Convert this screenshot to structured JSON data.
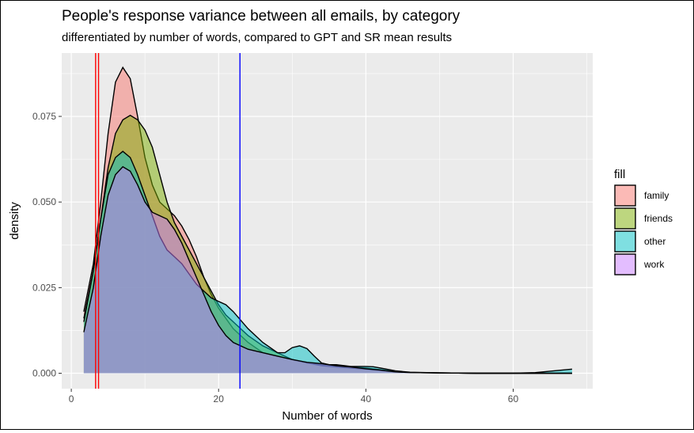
{
  "chart_data": {
    "type": "area",
    "title": "People's response variance between all emails, by category",
    "subtitle": "differentiated by number of words, compared to GPT and SR mean results",
    "xlabel": "Number of words",
    "ylabel": "density",
    "xlim": [
      -1.3,
      70.8
    ],
    "ylim": [
      -0.0045,
      0.0935
    ],
    "x_ticks": [
      0,
      20,
      40,
      60
    ],
    "x_tick_labels": [
      "0",
      "20",
      "40",
      "60"
    ],
    "y_ticks": [
      0.0,
      0.025,
      0.05,
      0.075
    ],
    "y_tick_labels": [
      "0.000",
      "0.025",
      "0.050",
      "0.075"
    ],
    "grid": true,
    "legend": {
      "title": "fill",
      "position": "right"
    },
    "series": [
      {
        "name": "family",
        "color": "#F8766D",
        "points": [
          [
            1.7,
            0.018
          ],
          [
            3,
            0.032
          ],
          [
            4,
            0.05
          ],
          [
            5,
            0.07
          ],
          [
            6,
            0.085
          ],
          [
            7,
            0.0893
          ],
          [
            8,
            0.086
          ],
          [
            9,
            0.075
          ],
          [
            10,
            0.063
          ],
          [
            11,
            0.055
          ],
          [
            12,
            0.05
          ],
          [
            13,
            0.048
          ],
          [
            14,
            0.046
          ],
          [
            15,
            0.043
          ],
          [
            16,
            0.039
          ],
          [
            17,
            0.034
          ],
          [
            18,
            0.028
          ],
          [
            19,
            0.023
          ],
          [
            20,
            0.019
          ],
          [
            21,
            0.016
          ],
          [
            22,
            0.013
          ],
          [
            24,
            0.009
          ],
          [
            26,
            0.006
          ],
          [
            28,
            0.005
          ],
          [
            30,
            0.004
          ],
          [
            32,
            0.003
          ],
          [
            34,
            0.0025
          ],
          [
            36,
            0.002
          ],
          [
            38,
            0.0018
          ],
          [
            40,
            0.0015
          ],
          [
            42,
            0.001
          ],
          [
            44,
            0.0005
          ],
          [
            46,
            0.0002
          ],
          [
            50,
            0.0001
          ],
          [
            55,
            0.0
          ],
          [
            68,
            0.0
          ]
        ]
      },
      {
        "name": "friends",
        "color": "#7CAE00",
        "points": [
          [
            1.7,
            0.016
          ],
          [
            3,
            0.03
          ],
          [
            4,
            0.045
          ],
          [
            5,
            0.06
          ],
          [
            6,
            0.07
          ],
          [
            7,
            0.074
          ],
          [
            8,
            0.0753
          ],
          [
            9,
            0.074
          ],
          [
            10,
            0.071
          ],
          [
            11,
            0.066
          ],
          [
            12,
            0.058
          ],
          [
            13,
            0.05
          ],
          [
            14,
            0.044
          ],
          [
            15,
            0.04
          ],
          [
            16,
            0.036
          ],
          [
            17,
            0.032
          ],
          [
            18,
            0.028
          ],
          [
            19,
            0.024
          ],
          [
            20,
            0.02
          ],
          [
            21,
            0.017
          ],
          [
            22,
            0.015
          ],
          [
            24,
            0.011
          ],
          [
            26,
            0.008
          ],
          [
            28,
            0.006
          ],
          [
            30,
            0.004
          ],
          [
            32,
            0.003
          ],
          [
            34,
            0.0022
          ],
          [
            36,
            0.0018
          ],
          [
            38,
            0.0015
          ],
          [
            40,
            0.0012
          ],
          [
            42,
            0.0008
          ],
          [
            44,
            0.0004
          ],
          [
            46,
            0.0002
          ],
          [
            50,
            0.0001
          ],
          [
            55,
            0.0
          ],
          [
            68,
            0.0
          ]
        ]
      },
      {
        "name": "other",
        "color": "#00BFC4",
        "points": [
          [
            1.7,
            0.015
          ],
          [
            3,
            0.03
          ],
          [
            4,
            0.045
          ],
          [
            5,
            0.058
          ],
          [
            6,
            0.063
          ],
          [
            7,
            0.0648
          ],
          [
            8,
            0.063
          ],
          [
            9,
            0.058
          ],
          [
            10,
            0.052
          ],
          [
            11,
            0.046
          ],
          [
            12,
            0.04
          ],
          [
            13,
            0.036
          ],
          [
            14,
            0.034
          ],
          [
            15,
            0.032
          ],
          [
            16,
            0.029
          ],
          [
            17,
            0.026
          ],
          [
            18,
            0.024
          ],
          [
            19,
            0.022
          ],
          [
            20,
            0.021
          ],
          [
            21,
            0.02
          ],
          [
            22,
            0.018
          ],
          [
            24,
            0.013
          ],
          [
            26,
            0.009
          ],
          [
            28,
            0.006
          ],
          [
            29,
            0.006
          ],
          [
            30,
            0.0075
          ],
          [
            31,
            0.008
          ],
          [
            32,
            0.0072
          ],
          [
            33,
            0.005
          ],
          [
            34,
            0.003
          ],
          [
            35,
            0.0025
          ],
          [
            36,
            0.0025
          ],
          [
            38,
            0.002
          ],
          [
            40,
            0.002
          ],
          [
            41,
            0.0019
          ],
          [
            42,
            0.0015
          ],
          [
            44,
            0.0007
          ],
          [
            46,
            0.0003
          ],
          [
            50,
            0.0001
          ],
          [
            55,
            0.0
          ],
          [
            60,
            0.0
          ],
          [
            63,
            0.0002
          ],
          [
            65,
            0.0006
          ],
          [
            68,
            0.0012
          ]
        ]
      },
      {
        "name": "work",
        "color": "#C77CFF",
        "points": [
          [
            1.7,
            0.012
          ],
          [
            3,
            0.025
          ],
          [
            4,
            0.04
          ],
          [
            5,
            0.052
          ],
          [
            6,
            0.058
          ],
          [
            7,
            0.0603
          ],
          [
            8,
            0.059
          ],
          [
            9,
            0.055
          ],
          [
            10,
            0.05
          ],
          [
            11,
            0.047
          ],
          [
            12,
            0.046
          ],
          [
            13,
            0.045
          ],
          [
            14,
            0.042
          ],
          [
            15,
            0.038
          ],
          [
            16,
            0.033
          ],
          [
            17,
            0.028
          ],
          [
            18,
            0.023
          ],
          [
            19,
            0.018
          ],
          [
            20,
            0.014
          ],
          [
            21,
            0.011
          ],
          [
            22,
            0.009
          ],
          [
            24,
            0.007
          ],
          [
            26,
            0.006
          ],
          [
            28,
            0.005
          ],
          [
            30,
            0.004
          ],
          [
            32,
            0.0032
          ],
          [
            34,
            0.0028
          ],
          [
            36,
            0.0022
          ],
          [
            38,
            0.0018
          ],
          [
            40,
            0.0013
          ],
          [
            42,
            0.0009
          ],
          [
            44,
            0.0004
          ],
          [
            46,
            0.0002
          ],
          [
            50,
            0.0001
          ],
          [
            55,
            0.0
          ],
          [
            68,
            0.0
          ]
        ]
      }
    ],
    "reference_lines": [
      {
        "x": 3.3,
        "color": "#ff0000"
      },
      {
        "x": 3.7,
        "color": "#ff0000"
      },
      {
        "x": 22.9,
        "color": "#0000ff"
      }
    ]
  }
}
